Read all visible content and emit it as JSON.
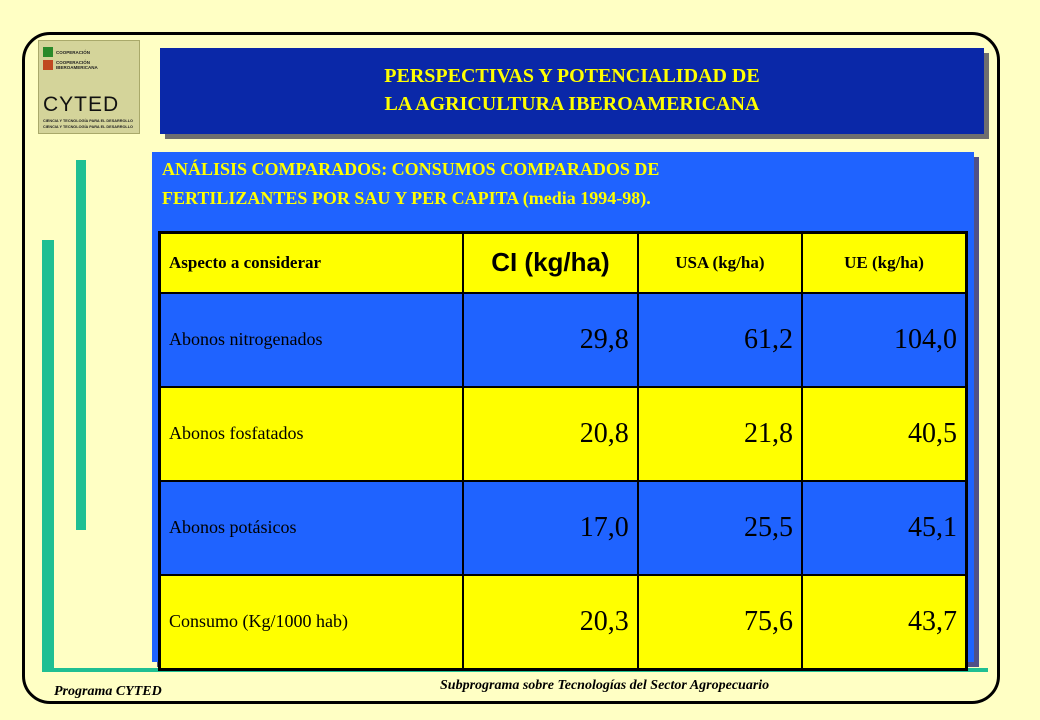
{
  "logo": {
    "line1": "COOPERACIÓN",
    "line2": "COOPERACIÓN IBEROAMERICANA",
    "brand": "CYTED",
    "tag1": "CIENCIA Y TECNOLOGÍA PARA EL DESARROLLO",
    "tag2": "CIENCIA Y TECNOLOGÍA PARA EL DESARROLLO"
  },
  "header": {
    "title_line1": "PERSPECTIVAS Y POTENCIALIDAD DE",
    "title_line2": "LA AGRICULTURA IBEROAMERICANA"
  },
  "section": {
    "subtitle_line1": "ANÁLISIS COMPARADOS: CONSUMOS COMPARADOS DE",
    "subtitle_line2": "FERTILIZANTES POR SAU Y PER CAPITA (media 1994-98)."
  },
  "table": {
    "headers": [
      "Aspecto a considerar",
      "CI (kg/ha)",
      "USA (kg/ha)",
      "UE (kg/ha)"
    ],
    "rows": [
      {
        "label": "Abonos nitrogenados",
        "ci": "29,8",
        "usa": "61,2",
        "ue": "104,0"
      },
      {
        "label": "Abonos fosfatados",
        "ci": "20,8",
        "usa": "21,8",
        "ue": "40,5"
      },
      {
        "label": "Abonos potásicos",
        "ci": "17,0",
        "usa": "25,5",
        "ue": "45,1"
      },
      {
        "label": "Consumo (Kg/1000 hab)",
        "ci": "20,3",
        "usa": "75,6",
        "ue": "43,7"
      }
    ]
  },
  "footer": {
    "left": "Programa CYTED",
    "right": "Subprograma sobre Tecnologías del Sector Agropecuario"
  },
  "colors": {
    "background": "#ffffc4",
    "title_blue": "#0a28a8",
    "panel_blue": "#1f63ff",
    "yellow": "#ffff00",
    "accent_green": "#1fbf93"
  }
}
